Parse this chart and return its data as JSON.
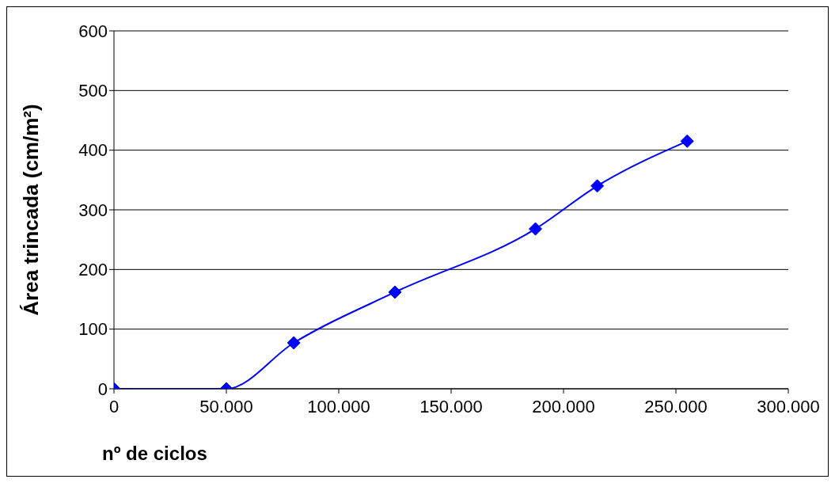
{
  "chart_data": {
    "type": "line",
    "xlabel": "nº de ciclos",
    "ylabel": "Área trincada (cm/m²)",
    "x": [
      0,
      50000,
      80000,
      125000,
      187500,
      215000,
      255000
    ],
    "series": [
      {
        "color": "#0000ff",
        "values": [
          0,
          0,
          77,
          162,
          268,
          340,
          415
        ]
      }
    ],
    "xlim": [
      0,
      300000
    ],
    "xticks": [
      0,
      {
        "value": 50000,
        "label": "50.000"
      },
      {
        "value": 100000,
        "label": "100.000"
      },
      {
        "value": 150000,
        "label": "150.000"
      },
      {
        "value": 200000,
        "label": "200.000"
      },
      {
        "value": 250000,
        "label": "250.000"
      },
      {
        "value": 300000,
        "label": "300.000"
      }
    ],
    "ylim": [
      0,
      600
    ],
    "yticks": [
      0,
      100,
      200,
      300,
      400,
      500,
      600
    ],
    "grid": "y",
    "marker": "diamond",
    "line_style": "solid"
  }
}
